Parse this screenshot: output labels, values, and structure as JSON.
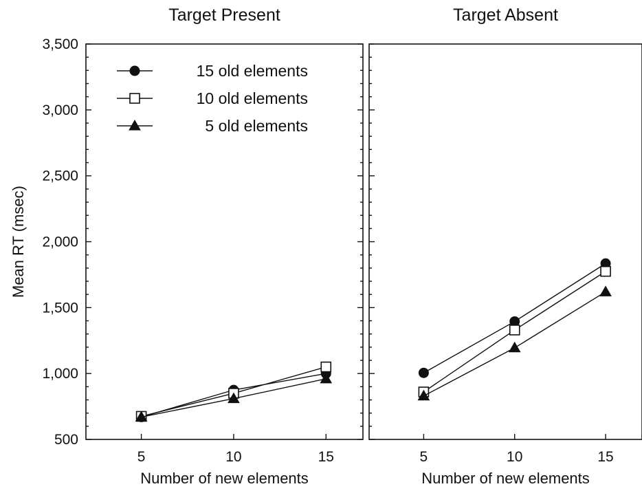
{
  "chart_data": [
    {
      "type": "line",
      "title": "Target Present",
      "xlabel": "Number of new elements",
      "ylabel": "Mean RT (msec)",
      "x": [
        5,
        10,
        15
      ],
      "x_tick_labels": [
        "5",
        "10",
        "15"
      ],
      "ylim": [
        500,
        3500
      ],
      "y_tick_labels": [
        "500",
        "1,000",
        "1,500",
        "2,000",
        "2,500",
        "3,000",
        "3,500"
      ],
      "grid": false,
      "legend_position": "top-left",
      "series": [
        {
          "name": "15 old elements",
          "marker": "filled-circle",
          "values": [
            670,
            875,
            1000
          ]
        },
        {
          "name": "10 old elements",
          "marker": "open-square",
          "values": [
            675,
            850,
            1050
          ]
        },
        {
          "name": "5 old elements",
          "marker": "filled-triangle",
          "values": [
            670,
            810,
            960
          ]
        }
      ]
    },
    {
      "type": "line",
      "title": "Target Absent",
      "xlabel": "Number of new elements",
      "ylabel": "",
      "x": [
        5,
        10,
        15
      ],
      "x_tick_labels": [
        "5",
        "10",
        "15"
      ],
      "ylim": [
        500,
        3500
      ],
      "grid": false,
      "series": [
        {
          "name": "15 old elements",
          "marker": "filled-circle",
          "values": [
            1005,
            1395,
            1835
          ]
        },
        {
          "name": "10 old elements",
          "marker": "open-square",
          "values": [
            860,
            1330,
            1775
          ]
        },
        {
          "name": "5 old elements",
          "marker": "filled-triangle",
          "values": [
            830,
            1195,
            1620
          ]
        }
      ]
    }
  ]
}
